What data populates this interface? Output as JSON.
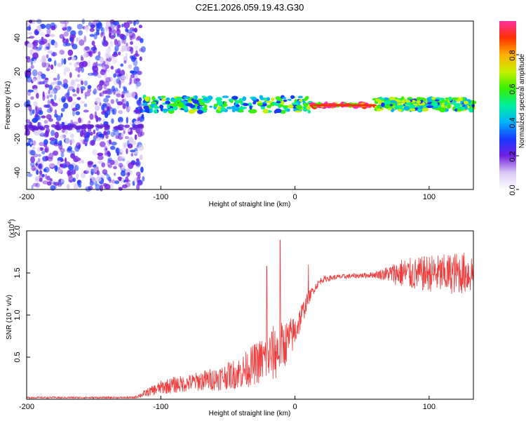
{
  "chart_data": [
    {
      "type": "heatmap",
      "title": "C2E1.2026.059.19.43.G30",
      "xlabel": "Height of straight line (km)",
      "ylabel": "Frequency (Hz)",
      "xlim": [
        -200,
        133
      ],
      "ylim": [
        -50,
        50
      ],
      "xticks": [
        "-200",
        "-100",
        "0",
        "100"
      ],
      "xtick_values": [
        -200,
        -100,
        0,
        100
      ],
      "yticks": [
        "-40",
        "-20",
        "0",
        "20",
        "40"
      ],
      "ytick_values": [
        -40,
        -20,
        0,
        20,
        40
      ],
      "colorbar": {
        "label": "Normalized spectral amplitude",
        "range": [
          0,
          1
        ],
        "ticks": [
          "0.0",
          "0.2",
          "0.4",
          "0.6",
          "0.8"
        ],
        "tick_values": [
          0.0,
          0.2,
          0.4,
          0.6,
          0.8
        ]
      },
      "regions": [
        {
          "x_range": [
            -200,
            -113
          ],
          "freq_range": [
            -50,
            50
          ],
          "amplitude": 0.1,
          "description_value": "diffuse low amplitude noise"
        },
        {
          "x_range": [
            -113,
            12
          ],
          "freq_range": [
            -4,
            5
          ],
          "amplitude": 0.45
        },
        {
          "x_range": [
            12,
            60
          ],
          "freq_range": [
            -1,
            1
          ],
          "amplitude": 1.0
        },
        {
          "x_range": [
            60,
            133
          ],
          "freq_range": [
            -3,
            4
          ],
          "amplitude": 0.5
        }
      ],
      "grid": false
    },
    {
      "type": "line",
      "title": "",
      "xlabel": "Height of straight line (km)",
      "ylabel": "SNR (10 * v/v)",
      "y_scale_label": "(x10",
      "y_scale_exp": "4",
      "y_scale_close": ")",
      "xlim": [
        -200,
        133
      ],
      "ylim": [
        0,
        2.0
      ],
      "xticks": [
        "-200",
        "-100",
        "0",
        "100"
      ],
      "xtick_values": [
        -200,
        -100,
        0,
        100
      ],
      "yticks": [
        "0.5",
        "1.0",
        "1.5",
        "2.0"
      ],
      "ytick_values": [
        0.5,
        1.0,
        1.5,
        2.0
      ],
      "color": "#f03c3c",
      "series": [
        {
          "name": "SNR",
          "x": [
            -200,
            -180,
            -160,
            -140,
            -120,
            -110,
            -100,
            -90,
            -80,
            -70,
            -60,
            -50,
            -40,
            -30,
            -20,
            -15,
            -10,
            -5,
            0,
            5,
            10,
            15,
            20,
            30,
            40,
            50,
            60,
            70,
            80,
            90,
            100,
            110,
            120,
            133
          ],
          "y": [
            0.02,
            0.02,
            0.02,
            0.02,
            0.02,
            0.08,
            0.14,
            0.17,
            0.19,
            0.22,
            0.24,
            0.28,
            0.32,
            0.42,
            0.5,
            0.55,
            0.62,
            0.7,
            0.8,
            1.0,
            1.2,
            1.33,
            1.42,
            1.45,
            1.46,
            1.47,
            1.48,
            1.49,
            1.5,
            1.48,
            1.5,
            1.48,
            1.5,
            1.5
          ],
          "noise_amplitude": [
            0.01,
            0.01,
            0.01,
            0.01,
            0.01,
            0.05,
            0.08,
            0.1,
            0.1,
            0.12,
            0.14,
            0.16,
            0.2,
            0.25,
            0.3,
            0.35,
            0.3,
            0.25,
            0.2,
            0.15,
            0.08,
            0.05,
            0.04,
            0.03,
            0.03,
            0.03,
            0.04,
            0.1,
            0.18,
            0.2,
            0.22,
            0.24,
            0.25,
            0.25
          ]
        }
      ],
      "peaks": [
        {
          "x": -21,
          "y": 1.58
        },
        {
          "x": -11,
          "y": 1.89
        },
        {
          "x": 10,
          "y": 1.6
        }
      ],
      "grid": false
    }
  ]
}
